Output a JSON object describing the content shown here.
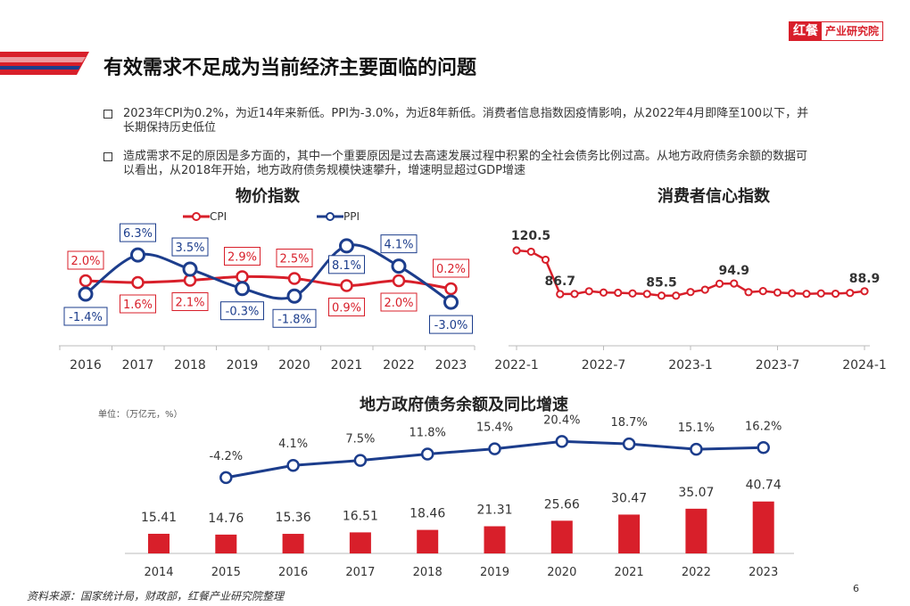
{
  "header": {
    "logo_mark": "红餐",
    "logo_text": "产业研究院",
    "title": "有效需求不足成为当前经济主要面临的问题"
  },
  "bullets": [
    "2023年CPI为0.2%，为近14年来新低。PPI为-3.0%，为近8年新低。消费者信息指数因疫情影响，从2022年4月即降至100以下，并长期保持历史低位",
    "造成需求不足的原因是多方面的，其中一个重要原因是过去高速发展过程中积累的全社会债务比例过高。从地方政府债务余额的数据可以看出，从2018年开始，地方政府债务规模快速攀升，增速明显超过GDP增速"
  ],
  "colors": {
    "red": "#d81f2a",
    "navy": "#1c3d8c",
    "grid": "#dddddd"
  },
  "chart_data": [
    {
      "type": "line",
      "title": "物价指数",
      "x": [
        "2016",
        "2017",
        "2018",
        "2019",
        "2020",
        "2021",
        "2022",
        "2023"
      ],
      "series": [
        {
          "name": "CPI",
          "values": [
            2.0,
            1.6,
            2.1,
            2.9,
            2.5,
            0.9,
            2.0,
            0.2
          ],
          "labels": [
            "2.0%",
            "1.6%",
            "2.1%",
            "2.9%",
            "2.5%",
            "0.9%",
            "2.0%",
            "0.2%"
          ]
        },
        {
          "name": "PPI",
          "values": [
            -1.4,
            6.3,
            3.5,
            -0.3,
            -1.8,
            8.1,
            4.1,
            -3.0
          ],
          "labels": [
            "-1.4%",
            "6.3%",
            "3.5%",
            "-0.3%",
            "-1.8%",
            "8.1%",
            "4.1%",
            "-3.0%"
          ]
        }
      ],
      "legend": "top"
    },
    {
      "type": "line",
      "title": "消费者信心指数",
      "x_ticks": [
        "2022-1",
        "2022-7",
        "2023-1",
        "2023-7",
        "2024-1"
      ],
      "values": [
        120.5,
        119.5,
        113.3,
        86.7,
        86.8,
        88.9,
        87.9,
        87.7,
        87.2,
        86.8,
        85.5,
        85.5,
        88.3,
        90.1,
        94.7,
        94.9,
        88.2,
        89.0,
        87.9,
        87.3,
        86.9,
        87.2,
        87.0,
        87.6,
        88.9
      ],
      "annotations": [
        {
          "label": "120.5",
          "index": 0
        },
        {
          "label": "86.7",
          "index": 3
        },
        {
          "label": "85.5",
          "index": 10
        },
        {
          "label": "94.9",
          "index": 15
        },
        {
          "label": "88.9",
          "index": 24
        }
      ]
    },
    {
      "type": "bar",
      "title": "地方政府债务余额及同比增速",
      "unit": "单位：（万亿元，%）",
      "categories": [
        "2014",
        "2015",
        "2016",
        "2017",
        "2018",
        "2019",
        "2020",
        "2021",
        "2022",
        "2023"
      ],
      "values": [
        15.41,
        14.76,
        15.36,
        16.51,
        18.46,
        21.31,
        25.66,
        30.47,
        35.07,
        40.74
      ],
      "value_labels": [
        "15.41",
        "14.76",
        "15.36",
        "16.51",
        "18.46",
        "21.31",
        "25.66",
        "30.47",
        "35.07",
        "40.74"
      ],
      "growth": {
        "values": [
          null,
          -4.2,
          4.1,
          7.5,
          11.8,
          15.4,
          20.4,
          18.7,
          15.1,
          16.2
        ],
        "labels": [
          "",
          "-4.2%",
          "4.1%",
          "7.5%",
          "11.8%",
          "15.4%",
          "20.4%",
          "18.7%",
          "15.1%",
          "16.2%"
        ]
      }
    }
  ],
  "footer": {
    "source": "资料来源：国家统计局，财政部，红餐产业研究院整理",
    "page": "6"
  }
}
